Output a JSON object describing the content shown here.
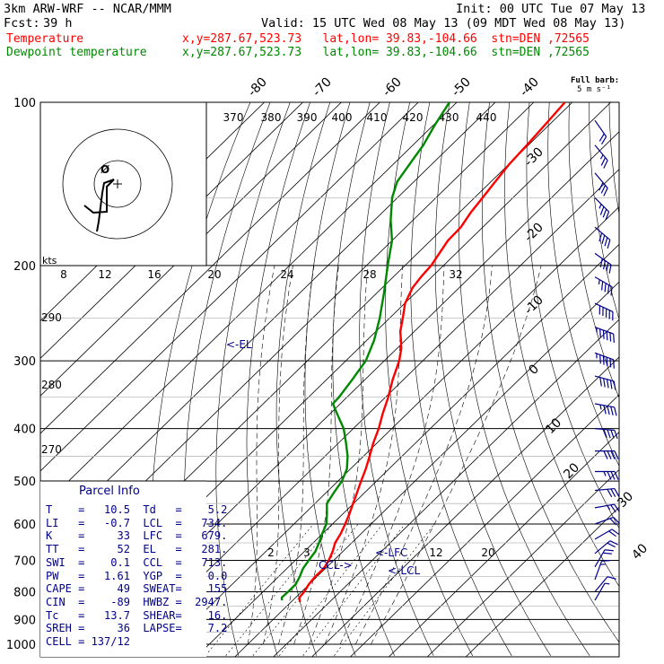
{
  "header": {
    "model": "3km ARW-WRF -- NCAR/MMM",
    "init": "Init: 00 UTC Tue 07 May 13",
    "fcst_label": "Fcst:",
    "fcst_value": "39 h",
    "valid": "Valid: 15 UTC Wed 08 May 13 (09 MDT Wed 08 May 13)"
  },
  "legend": {
    "temperature": "Temperature",
    "temperature_loc": "x,y=287.67,523.73   lat,lon= 39.83,-104.66  stn=DEN ,72565",
    "dewpoint": "Dewpoint temperature",
    "dewpoint_loc": "x,y=287.67,523.73   lat,lon= 39.83,-104.66  stn=DEN ,72565",
    "full_barb_line1": "Full barb:",
    "full_barb_line2": "5 m s⁻¹"
  },
  "colors": {
    "temperature": "#ff0000",
    "dewpoint": "#008800",
    "annotation": "#00008b",
    "wind": "#00008b",
    "grid": "#000000"
  },
  "parcel_info": {
    "title": "Parcel Info",
    "rows": [
      {
        "l": "T",
        "lv": "10.5",
        "r": "Td",
        "rv": "5.2"
      },
      {
        "l": "LI",
        "lv": "-0.7",
        "r": "LCL",
        "rv": "734."
      },
      {
        "l": "K",
        "lv": "33",
        "r": "LFC",
        "rv": "679."
      },
      {
        "l": "TT",
        "lv": "52",
        "r": "EL",
        "rv": "281."
      },
      {
        "l": "SWI",
        "lv": "0.1",
        "r": "CCL",
        "rv": "713."
      },
      {
        "l": "PW",
        "lv": "1.61",
        "r": "YGP",
        "rv": "0.0"
      },
      {
        "l": "CAPE",
        "lv": "49",
        "r": "SWEAT",
        "rv": "155"
      },
      {
        "l": "CIN",
        "lv": "-89",
        "r": "HWBZ",
        "rv": "2947."
      },
      {
        "l": "Tc",
        "lv": "13.7",
        "r": "SHEAR",
        "rv": "16."
      },
      {
        "l": "SREH",
        "lv": "36",
        "r": "LAPSE",
        "rv": "7.2"
      },
      {
        "l": "CELL",
        "lv": "137/12",
        "r": "",
        "rv": ""
      }
    ]
  },
  "chart_data": {
    "type": "line",
    "chart_kind": "skew-T log-p sounding",
    "y_axis": {
      "scale": "log",
      "ylim": [
        1000,
        100
      ],
      "ticks": [
        100,
        200,
        300,
        400,
        500,
        600,
        700,
        800,
        900,
        1000
      ]
    },
    "temperature_ticks": [
      "-80",
      "-70",
      "-60",
      "-50",
      "-40",
      "-30",
      "-20",
      "-10",
      "0",
      "10",
      "20",
      "30",
      "40"
    ],
    "theta_labels": [
      "370",
      "380",
      "390",
      "400",
      "410",
      "420",
      "430",
      "440"
    ],
    "theta_side_labels": [
      "290",
      "280",
      "270"
    ],
    "hodograph_ring_labels": [
      "8",
      "12",
      "16",
      "20",
      "24",
      "28",
      "32"
    ],
    "hodograph_units": "kts",
    "hodograph_mark": "Ø",
    "mixing_ratio_labels": [
      "2",
      "3",
      "12",
      "20"
    ],
    "parcel_markers": [
      "<-EL",
      "<-LFC",
      "<-LCL",
      "CCL->"
    ],
    "series": [
      {
        "name": "Temperature",
        "color": "#ff0000",
        "points": [
          [
            836,
            2.3
          ],
          [
            820,
            1.0
          ],
          [
            800,
            0.7
          ],
          [
            775,
            -0.1
          ],
          [
            750,
            -0.5
          ],
          [
            725,
            -0.4
          ],
          [
            700,
            -1.3
          ],
          [
            675,
            -2.6
          ],
          [
            650,
            -4.3
          ],
          [
            625,
            -5.3
          ],
          [
            600,
            -6.7
          ],
          [
            575,
            -8.3
          ],
          [
            550,
            -10.1
          ],
          [
            525,
            -12.0
          ],
          [
            500,
            -14.0
          ],
          [
            475,
            -16.0
          ],
          [
            450,
            -18.4
          ],
          [
            425,
            -21.0
          ],
          [
            400,
            -23.4
          ],
          [
            375,
            -26.4
          ],
          [
            350,
            -29.3
          ],
          [
            325,
            -32.8
          ],
          [
            300,
            -36.1
          ],
          [
            285,
            -38.8
          ],
          [
            275,
            -41.1
          ],
          [
            265,
            -43.6
          ],
          [
            250,
            -46.6
          ],
          [
            235,
            -49.9
          ],
          [
            220,
            -52.1
          ],
          [
            210,
            -52.8
          ],
          [
            200,
            -53.2
          ],
          [
            180,
            -55.5
          ],
          [
            170,
            -55.7
          ],
          [
            160,
            -57.0
          ],
          [
            150,
            -57.9
          ],
          [
            140,
            -58.9
          ],
          [
            130,
            -59.9
          ],
          [
            120,
            -60.4
          ],
          [
            110,
            -61.1
          ],
          [
            100,
            -61.9
          ]
        ]
      },
      {
        "name": "Dewpoint temperature",
        "color": "#008800",
        "points": [
          [
            830,
            -2.8
          ],
          [
            820,
            -3.6
          ],
          [
            800,
            -3.5
          ],
          [
            775,
            -3.5
          ],
          [
            750,
            -4.5
          ],
          [
            725,
            -5.8
          ],
          [
            700,
            -6.5
          ],
          [
            675,
            -7.1
          ],
          [
            650,
            -8.5
          ],
          [
            625,
            -10.1
          ],
          [
            600,
            -11.6
          ],
          [
            575,
            -14.1
          ],
          [
            550,
            -16.9
          ],
          [
            525,
            -18.0
          ],
          [
            500,
            -19.0
          ],
          [
            475,
            -20.9
          ],
          [
            450,
            -24.1
          ],
          [
            425,
            -28.1
          ],
          [
            400,
            -32.5
          ],
          [
            375,
            -38.3
          ],
          [
            360,
            -41.9
          ],
          [
            350,
            -42.1
          ],
          [
            325,
            -43.3
          ],
          [
            300,
            -44.8
          ],
          [
            275,
            -48.1
          ],
          [
            250,
            -52.6
          ],
          [
            225,
            -58.1
          ],
          [
            200,
            -64.5
          ],
          [
            180,
            -70.0
          ],
          [
            165,
            -75.8
          ],
          [
            150,
            -81.4
          ],
          [
            140,
            -84.4
          ],
          [
            130,
            -85.8
          ],
          [
            120,
            -87.3
          ],
          [
            110,
            -89.7
          ],
          [
            100,
            -91.9
          ]
        ]
      }
    ],
    "hodograph": {
      "points": [
        [
          -37,
          -24
        ],
        [
          -27,
          -32
        ],
        [
          -12,
          -31
        ],
        [
          -12,
          -3
        ],
        [
          -4,
          5
        ],
        [
          -15,
          1
        ],
        [
          -17,
          -10
        ],
        [
          -21,
          -42
        ],
        [
          -23,
          -53
        ]
      ]
    },
    "wind_barbs": [
      {
        "p": 830,
        "dir": 210,
        "spd": 4
      },
      {
        "p": 800,
        "dir": 220,
        "spd": 6
      },
      {
        "p": 760,
        "dir": 200,
        "spd": 8
      },
      {
        "p": 720,
        "dir": 210,
        "spd": 10
      },
      {
        "p": 680,
        "dir": 230,
        "spd": 10
      },
      {
        "p": 640,
        "dir": 240,
        "spd": 10
      },
      {
        "p": 600,
        "dir": 250,
        "spd": 12
      },
      {
        "p": 560,
        "dir": 260,
        "spd": 14
      },
      {
        "p": 520,
        "dir": 265,
        "spd": 16
      },
      {
        "p": 480,
        "dir": 270,
        "spd": 18
      },
      {
        "p": 440,
        "dir": 270,
        "spd": 20
      },
      {
        "p": 400,
        "dir": 275,
        "spd": 22
      },
      {
        "p": 360,
        "dir": 280,
        "spd": 24
      },
      {
        "p": 320,
        "dir": 285,
        "spd": 26
      },
      {
        "p": 290,
        "dir": 290,
        "spd": 28
      },
      {
        "p": 260,
        "dir": 290,
        "spd": 28
      },
      {
        "p": 235,
        "dir": 295,
        "spd": 26
      },
      {
        "p": 210,
        "dir": 300,
        "spd": 24
      },
      {
        "p": 190,
        "dir": 305,
        "spd": 22
      },
      {
        "p": 170,
        "dir": 310,
        "spd": 20
      },
      {
        "p": 150,
        "dir": 315,
        "spd": 18
      },
      {
        "p": 135,
        "dir": 320,
        "spd": 16
      },
      {
        "p": 120,
        "dir": 320,
        "spd": 14
      },
      {
        "p": 108,
        "dir": 325,
        "spd": 12
      }
    ]
  }
}
